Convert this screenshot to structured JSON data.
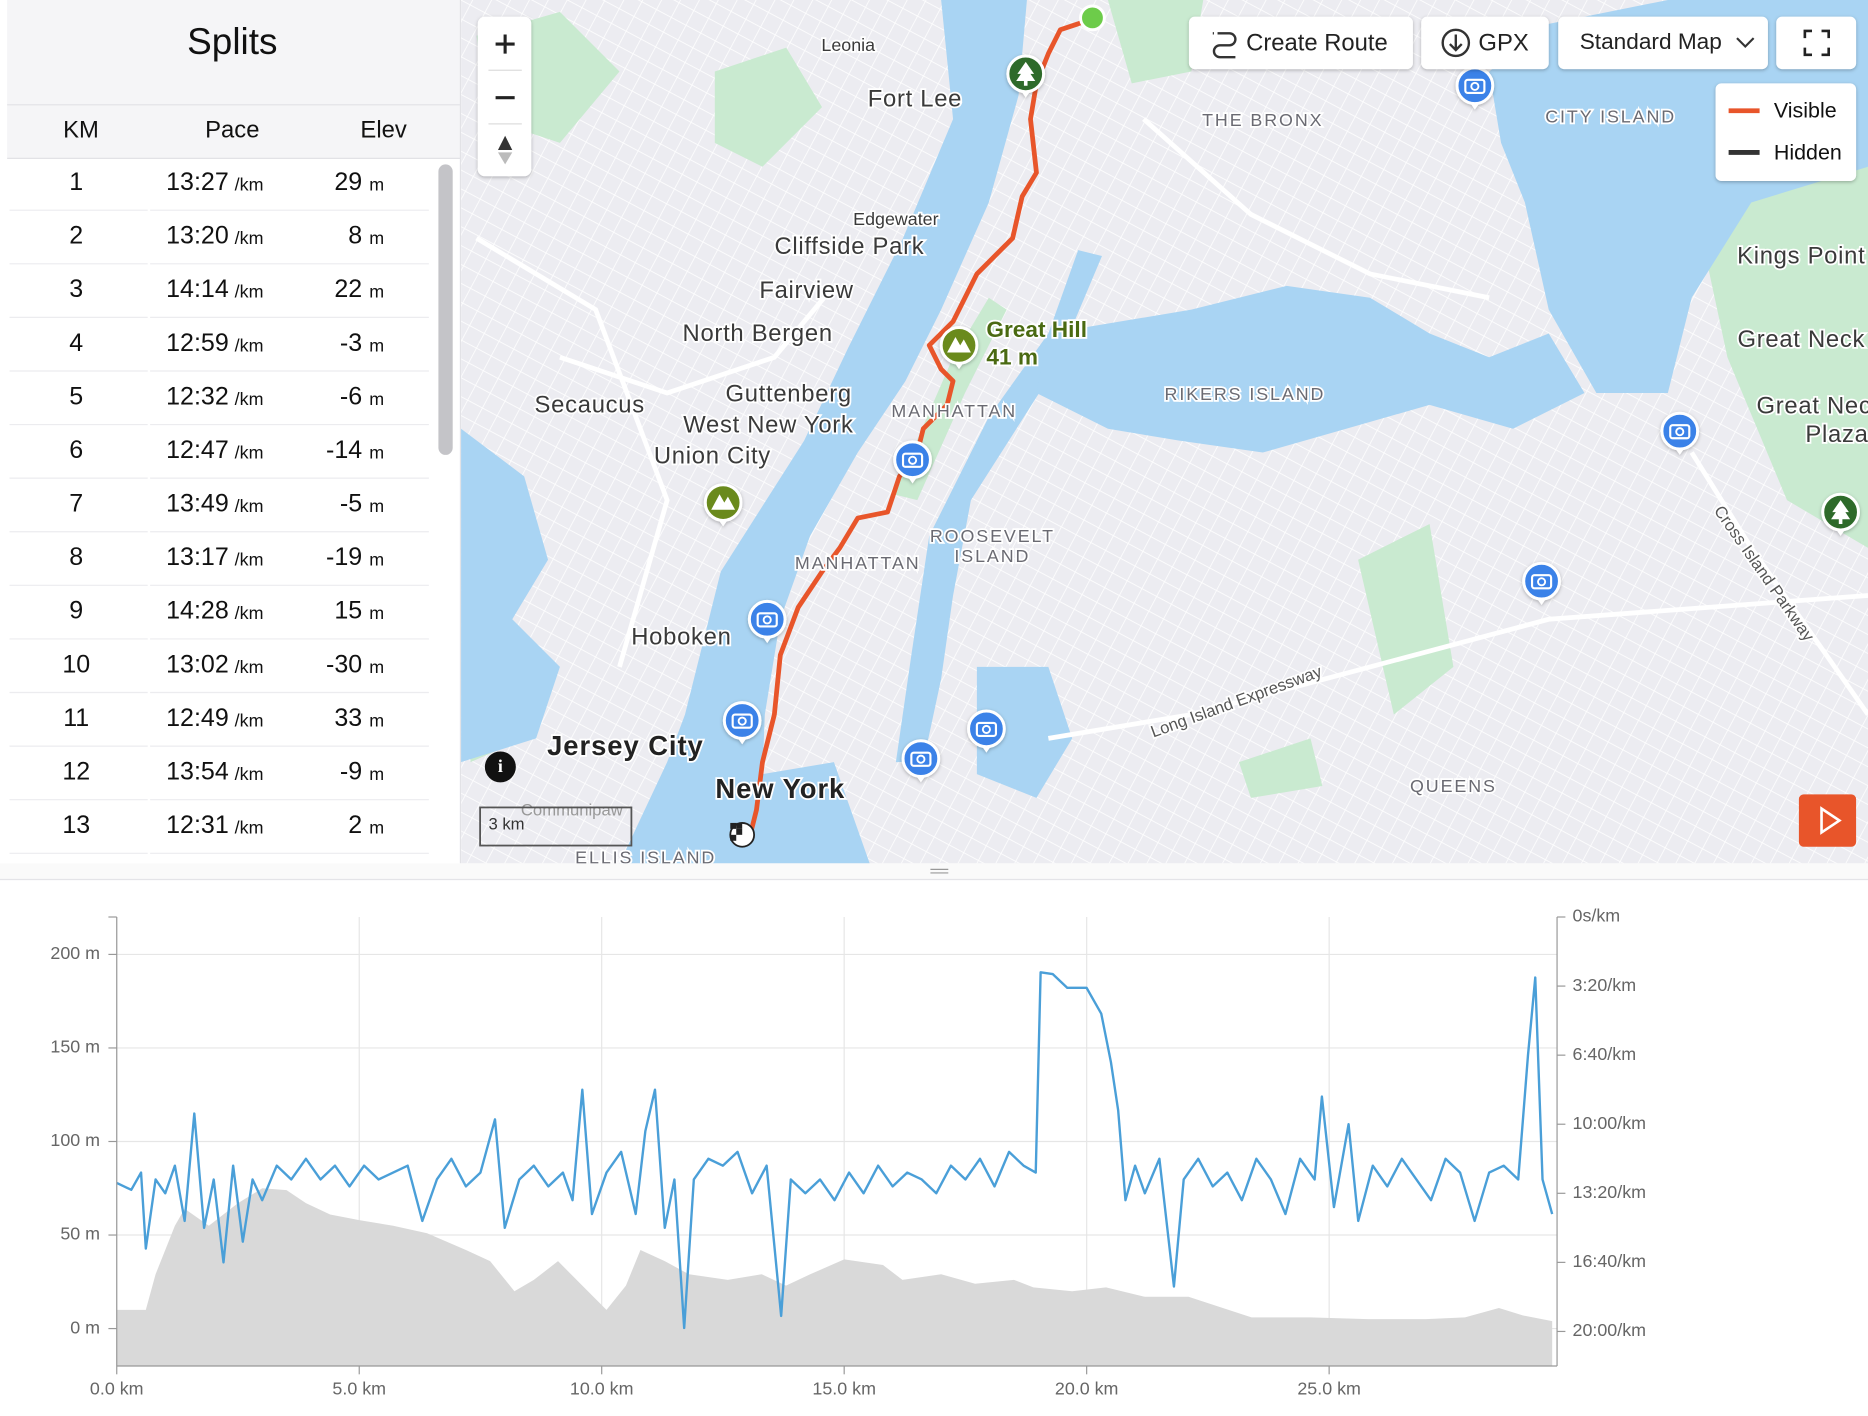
{
  "splits": {
    "title": "Splits",
    "columns": [
      "KM",
      "Pace",
      "Elev"
    ],
    "pace_unit": "/km",
    "elev_unit": "m",
    "rows": [
      [
        "1",
        "13:27",
        "29"
      ],
      [
        "2",
        "13:20",
        "8"
      ],
      [
        "3",
        "14:14",
        "22"
      ],
      [
        "4",
        "12:59",
        "-3"
      ],
      [
        "5",
        "12:32",
        "-6"
      ],
      [
        "6",
        "12:47",
        "-14"
      ],
      [
        "7",
        "13:49",
        "-5"
      ],
      [
        "8",
        "13:17",
        "-19"
      ],
      [
        "9",
        "14:28",
        "15"
      ],
      [
        "10",
        "13:02",
        "-30"
      ],
      [
        "11",
        "12:49",
        "33"
      ],
      [
        "12",
        "13:54",
        "-9"
      ],
      [
        "13",
        "12:31",
        "2"
      ]
    ]
  },
  "map": {
    "buttons": {
      "create_route": "Create Route",
      "gpx": "GPX",
      "map_style": "Standard Map"
    },
    "legend": [
      {
        "name": "Visible",
        "color": "#e8552a"
      },
      {
        "name": "Hidden",
        "color": "#333333"
      }
    ],
    "route_color": "#e8552a",
    "scale": "3 km",
    "summit": {
      "name": "Great Hill",
      "elevation": "41 m"
    },
    "labels": [
      "Leonia",
      "Fort Lee",
      "THE BRONX",
      "CITY ISLAND",
      "Edgewater",
      "Cliffside Park",
      "Fairview",
      "North Bergen",
      "Kings Point",
      "Great Neck",
      "Secaucus",
      "Guttenberg",
      "West New York",
      "Union City",
      "MANHATTAN",
      "RIKERS ISLAND",
      "Great Neck",
      "Plaza",
      "ROOSEVELT",
      "ISLAND",
      "MANHATTAN",
      "Hoboken",
      "Jersey City",
      "New York",
      "QUEENS",
      "Long Island Expressway",
      "Cross Island Parkway",
      "Communipaw",
      "ELLIS ISLAND"
    ]
  },
  "chart_data": {
    "type": "line",
    "xlim": [
      0,
      29.7
    ],
    "xticks": [
      {
        "value": 0,
        "label": "0.0 km"
      },
      {
        "value": 5,
        "label": "5.0 km"
      },
      {
        "value": 10,
        "label": "10.0 km"
      },
      {
        "value": 15,
        "label": "15.0 km"
      },
      {
        "value": 20,
        "label": "20.0 km"
      },
      {
        "value": 25,
        "label": "25.0 km"
      }
    ],
    "ylim": [
      -20,
      220
    ],
    "yticks": [
      {
        "value": 0,
        "label": "0 m"
      },
      {
        "value": 50,
        "label": "50 m"
      },
      {
        "value": 100,
        "label": "100 m"
      },
      {
        "value": 150,
        "label": "150 m"
      },
      {
        "value": 200,
        "label": "200 m"
      }
    ],
    "y2lim": [
      1300,
      0
    ],
    "y2ticks": [
      {
        "value": 0,
        "label": "0s/km"
      },
      {
        "value": 200,
        "label": "3:20/km"
      },
      {
        "value": 400,
        "label": "6:40/km"
      },
      {
        "value": 600,
        "label": "10:00/km"
      },
      {
        "value": 800,
        "label": "13:20/km"
      },
      {
        "value": 1000,
        "label": "16:40/km"
      },
      {
        "value": 1200,
        "label": "20:00/km"
      }
    ],
    "grid": true,
    "series": [
      {
        "color": "#d9d9d9",
        "fill": true,
        "x": [
          0,
          0.6,
          0.8,
          1.2,
          1.4,
          1.9,
          2.5,
          3.0,
          3.5,
          3.9,
          4.4,
          5.0,
          5.7,
          6.4,
          7.2,
          7.7,
          8.2,
          8.6,
          9.1,
          9.6,
          10.1,
          10.5,
          10.8,
          11.3,
          11.8,
          12.6,
          13.3,
          13.8,
          14.3,
          15.0,
          15.8,
          16.2,
          17.0,
          17.7,
          18.5,
          18.9,
          19.7,
          20.4,
          21.2,
          22.1,
          23.4,
          24.6,
          25.8,
          27.0,
          27.8,
          28.5,
          29.0,
          29.6
        ],
        "values": [
          10,
          10,
          29,
          55,
          64,
          55,
          67,
          75,
          74,
          67,
          61,
          58,
          55,
          51,
          42,
          36,
          20,
          26,
          36,
          23,
          10,
          23,
          42,
          36,
          29,
          26,
          29,
          23,
          29,
          37,
          34,
          26,
          29,
          24,
          26,
          22,
          20,
          22,
          17,
          17,
          6,
          6,
          5,
          5,
          6,
          11,
          7,
          4
        ]
      },
      {
        "color": "#4a9fd8",
        "axis": "y2",
        "x": [
          0.0,
          0.3,
          0.5,
          0.6,
          0.8,
          1.0,
          1.2,
          1.4,
          1.6,
          1.8,
          2.0,
          2.2,
          2.4,
          2.6,
          2.8,
          3.0,
          3.3,
          3.6,
          3.9,
          4.2,
          4.5,
          4.8,
          5.1,
          5.4,
          5.7,
          6.0,
          6.3,
          6.6,
          6.9,
          7.2,
          7.5,
          7.8,
          8.0,
          8.3,
          8.6,
          8.9,
          9.2,
          9.4,
          9.6,
          9.8,
          10.1,
          10.4,
          10.7,
          10.9,
          11.1,
          11.3,
          11.5,
          11.7,
          11.9,
          12.2,
          12.5,
          12.8,
          13.1,
          13.4,
          13.7,
          13.9,
          14.2,
          14.5,
          14.8,
          15.1,
          15.4,
          15.7,
          16.0,
          16.3,
          16.6,
          16.9,
          17.2,
          17.5,
          17.8,
          18.1,
          18.4,
          18.7,
          18.95,
          19.05,
          19.3,
          19.6,
          20.0,
          20.3,
          20.5,
          20.65,
          20.8,
          21.0,
          21.2,
          21.5,
          21.8,
          22.0,
          22.3,
          22.6,
          22.9,
          23.2,
          23.5,
          23.8,
          24.1,
          24.4,
          24.7,
          24.85,
          25.1,
          25.4,
          25.6,
          25.9,
          26.2,
          26.5,
          26.8,
          27.1,
          27.4,
          27.7,
          28.0,
          28.3,
          28.6,
          28.9,
          29.1,
          29.25,
          29.4,
          29.6
        ],
        "values": [
          770,
          790,
          740,
          960,
          760,
          800,
          720,
          880,
          569,
          900,
          760,
          1000,
          720,
          940,
          760,
          820,
          720,
          760,
          700,
          760,
          720,
          780,
          720,
          760,
          740,
          720,
          880,
          760,
          700,
          780,
          740,
          586,
          900,
          760,
          720,
          780,
          740,
          820,
          500,
          860,
          740,
          680,
          860,
          620,
          500,
          900,
          760,
          1190,
          760,
          700,
          720,
          680,
          800,
          720,
          1155,
          760,
          800,
          760,
          820,
          740,
          800,
          720,
          780,
          740,
          760,
          800,
          720,
          760,
          700,
          780,
          680,
          720,
          740,
          160,
          165,
          205,
          205,
          280,
          420,
          560,
          820,
          720,
          800,
          700,
          1070,
          760,
          700,
          780,
          740,
          820,
          700,
          760,
          860,
          700,
          760,
          520,
          840,
          600,
          880,
          720,
          780,
          700,
          760,
          820,
          700,
          740,
          880,
          740,
          720,
          760,
          400,
          175,
          760,
          860
        ]
      }
    ]
  }
}
